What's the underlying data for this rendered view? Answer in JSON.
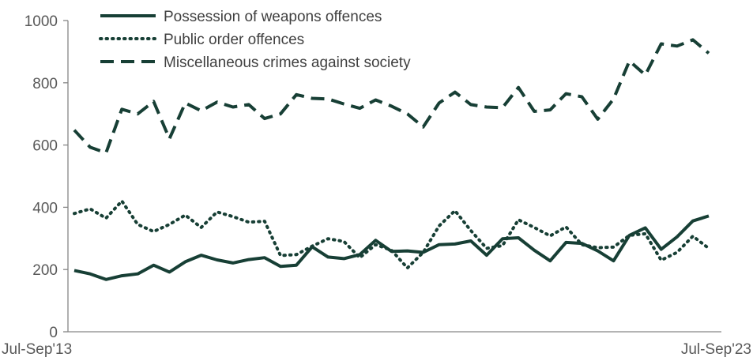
{
  "chart_data": {
    "type": "line",
    "title": "",
    "xlabel": "",
    "ylabel": "",
    "ylim": [
      0,
      1000
    ],
    "yticks": [
      0,
      200,
      400,
      600,
      800,
      1000
    ],
    "x_tick_labels": [
      "Jul-Sep'13",
      "Jul-Sep'23"
    ],
    "grid": false,
    "legend_position": "top-left",
    "series": [
      {
        "name": "Possession of weapons offences",
        "style": "solid",
        "color": "#173f35",
        "values": [
          197,
          186,
          168,
          180,
          186,
          214,
          192,
          225,
          246,
          231,
          221,
          232,
          238,
          210,
          214,
          273,
          240,
          235,
          248,
          294,
          258,
          260,
          255,
          280,
          282,
          292,
          246,
          299,
          302,
          262,
          228,
          287,
          284,
          260,
          228,
          310,
          334,
          265,
          305,
          356,
          372
        ]
      },
      {
        "name": "Public order offences",
        "style": "dotted",
        "color": "#173f35",
        "values": [
          380,
          395,
          365,
          420,
          345,
          322,
          345,
          375,
          335,
          385,
          370,
          352,
          355,
          245,
          248,
          275,
          299,
          290,
          238,
          280,
          262,
          205,
          255,
          340,
          389,
          325,
          268,
          277,
          360,
          335,
          308,
          337,
          280,
          270,
          272,
          310,
          315,
          230,
          255,
          307,
          268
        ]
      },
      {
        "name": "Miscellaneous crimes against society",
        "style": "dashed",
        "color": "#173f35",
        "values": [
          648,
          593,
          575,
          715,
          700,
          740,
          620,
          735,
          710,
          738,
          722,
          730,
          685,
          700,
          762,
          750,
          748,
          732,
          718,
          745,
          725,
          700,
          658,
          735,
          770,
          730,
          722,
          720,
          785,
          708,
          713,
          765,
          755,
          683,
          748,
          870,
          825,
          925,
          918,
          938,
          895
        ]
      }
    ]
  }
}
